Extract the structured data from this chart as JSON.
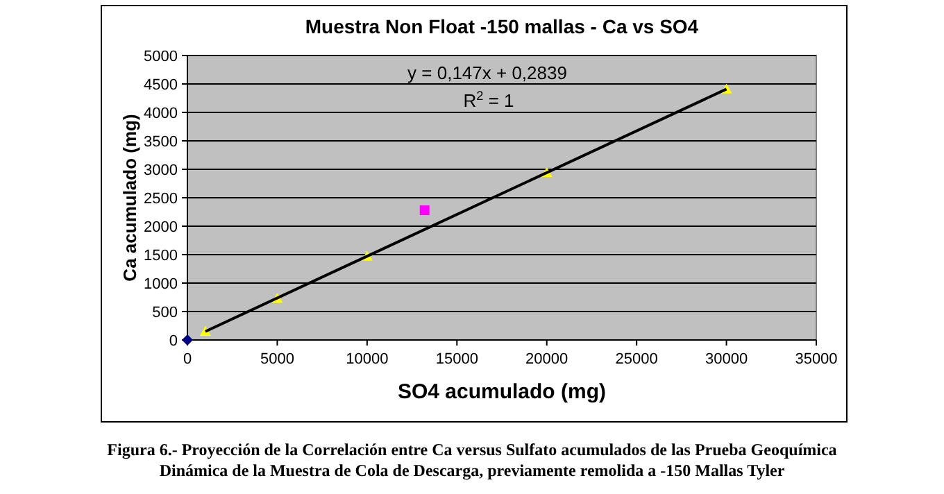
{
  "chart_data": {
    "type": "scatter",
    "title": "Muestra Non Float -150 mallas - Ca vs SO4",
    "xlabel": "SO4 acumulado (mg)",
    "ylabel": "Ca acumulado (mg)",
    "xlim": [
      0,
      35000
    ],
    "xticks": [
      0,
      5000,
      10000,
      15000,
      20000,
      25000,
      30000,
      35000
    ],
    "ylim": [
      0,
      5000
    ],
    "yticks": [
      0,
      500,
      1000,
      1500,
      2000,
      2500,
      3000,
      3500,
      4000,
      4500,
      5000
    ],
    "grid": "y",
    "series": [
      {
        "type": "scatter",
        "marker": "diamond",
        "color": "#000080",
        "x": [
          0
        ],
        "values": [
          0
        ]
      },
      {
        "type": "scatter",
        "marker": "triangle",
        "color": "#ffff00",
        "x": [
          1000,
          5000,
          10000,
          20000,
          30000
        ],
        "values": [
          150,
          730,
          1470,
          2940,
          4410
        ]
      },
      {
        "type": "scatter",
        "marker": "square",
        "color": "#ff00ff",
        "x": [
          13200
        ],
        "values": [
          2280
        ]
      },
      {
        "type": "line",
        "marker": "none",
        "color": "#000000",
        "x": [
          1000,
          30000
        ],
        "values": [
          150,
          4410
        ]
      }
    ],
    "annotations": [
      "y = 0,147x + 0,2839",
      "R$^{2}$ = 1",
      "Figura 6.- Proyección de la Correlación entre Ca versus Sulfato acumulados de  las Prueba Geoquímica",
      "Dinámica de la Muestra de Cola de Descarga, previamente remolida a -150 Mallas Tyler"
    ]
  }
}
